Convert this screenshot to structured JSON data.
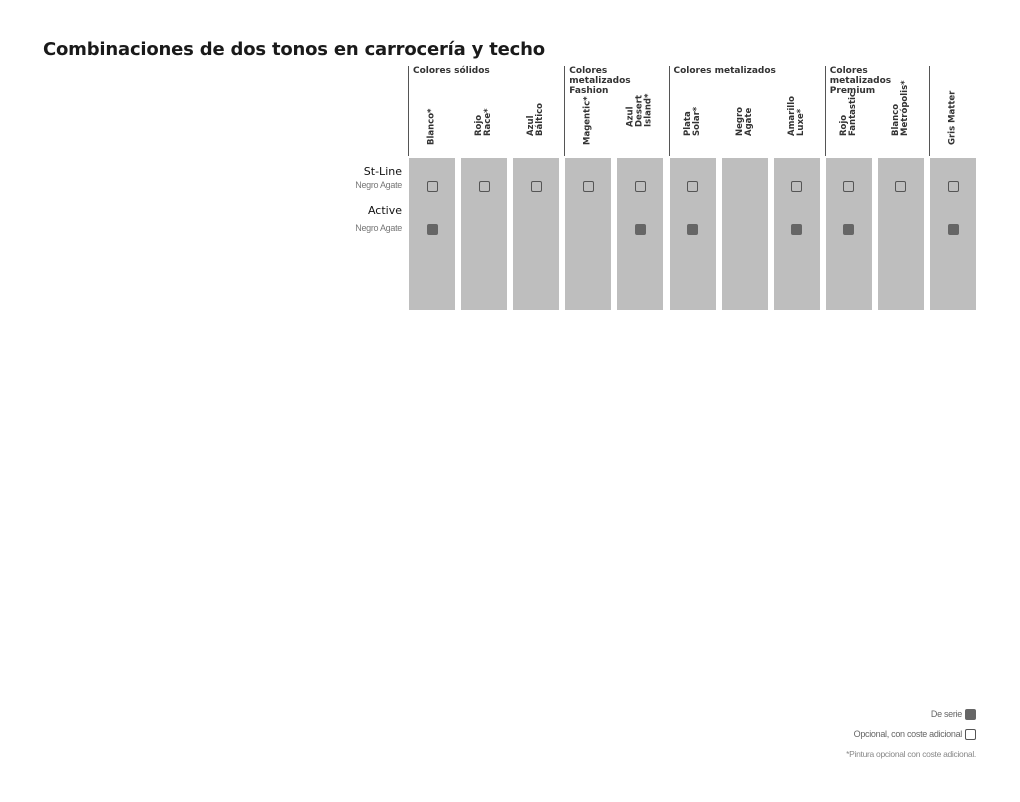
{
  "title": "Combinaciones de dos tonos en carrocería y techo",
  "groups": [
    {
      "label": "Colores sólidos"
    },
    {
      "label": "Colores metalizados Fashion"
    },
    {
      "label": "Colores metalizados"
    },
    {
      "label": "Colores metalizados Premium"
    }
  ],
  "colors": [
    {
      "label": "Blanco*"
    },
    {
      "label": "Rojo\nRace*"
    },
    {
      "label": "Azul\nBáltico"
    },
    {
      "label": "Magentic*"
    },
    {
      "label": "Azul\nDesert\nIsland*"
    },
    {
      "label": "Plata\nSolar*"
    },
    {
      "label": "Negro\nAgate"
    },
    {
      "label": "Amarillo\nLuxe*"
    },
    {
      "label": "Rojo\nFantastic"
    },
    {
      "label": "Blanco\nMetrópolis*"
    },
    {
      "label": "Gris Matter"
    }
  ],
  "rows": [
    {
      "trim": "St-Line",
      "roof": "Negro Agate",
      "cells": [
        "opt",
        "opt",
        "opt",
        "opt",
        "opt",
        "opt",
        "",
        "opt",
        "opt",
        "opt",
        "opt"
      ]
    },
    {
      "trim": "Active",
      "roof": "Negro Agate",
      "cells": [
        "std",
        "",
        "",
        "",
        "std",
        "std",
        "",
        "std",
        "std",
        "",
        "std"
      ]
    }
  ],
  "legend": {
    "standard": "De serie",
    "optional": "Opcional, con coste adicional",
    "footnote": "*Pintura opcional con coste adicional."
  }
}
